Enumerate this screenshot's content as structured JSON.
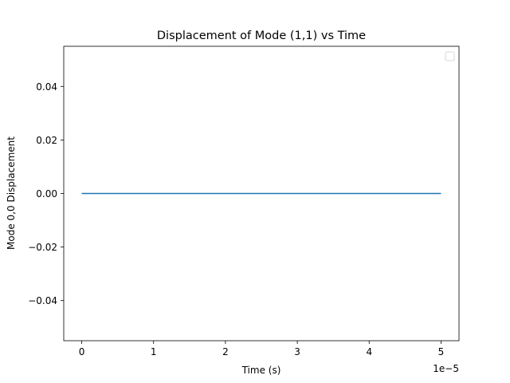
{
  "chart_data": {
    "type": "line",
    "title": "Displacement of Mode (1,1) vs Time",
    "xlabel": "Time (s)",
    "ylabel": "Mode 0,0 Displacement",
    "x_offset_label": "1e−5",
    "x_scale": 1e-05,
    "xlim": [
      -0.25,
      5.25
    ],
    "ylim": [
      -0.055,
      0.055
    ],
    "x_ticks": [
      0,
      1,
      2,
      3,
      4,
      5
    ],
    "x_tick_labels": [
      "0",
      "1",
      "2",
      "3",
      "4",
      "5"
    ],
    "y_ticks": [
      -0.04,
      -0.02,
      0.0,
      0.02,
      0.04
    ],
    "y_tick_labels": [
      "−0.04",
      "−0.02",
      "0.00",
      "0.02",
      "0.04"
    ],
    "grid": false,
    "legend": {
      "placement": "top-right",
      "entries": []
    },
    "series": [
      {
        "color": "#1f77b4",
        "x": [
          0,
          5
        ],
        "y": [
          0,
          0
        ]
      }
    ]
  }
}
